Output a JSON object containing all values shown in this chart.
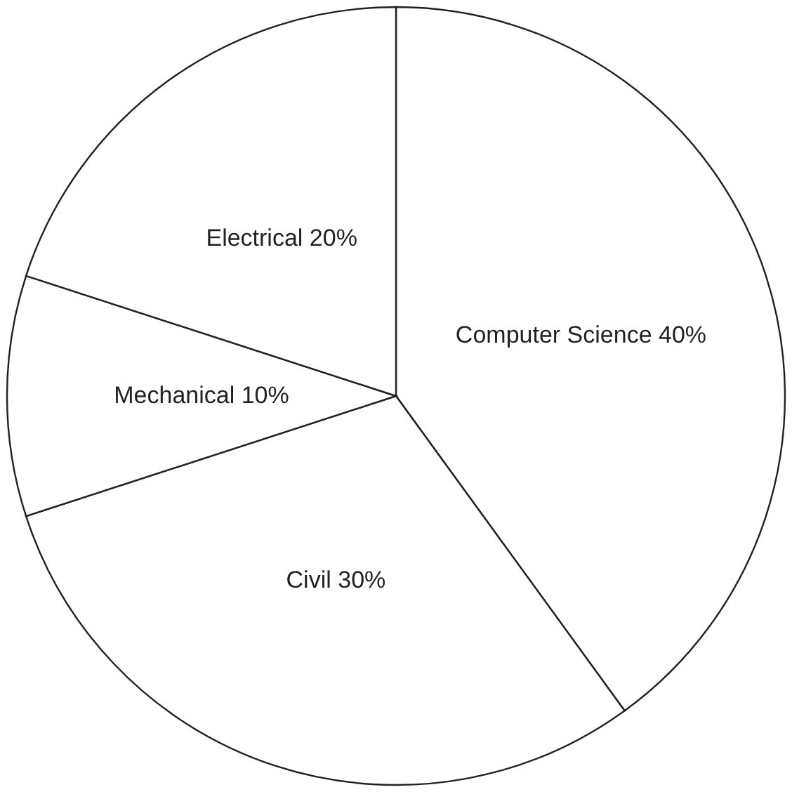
{
  "chart_data": {
    "type": "pie",
    "categories": [
      "Computer Science",
      "Civil",
      "Mechanical",
      "Electrical"
    ],
    "values": [
      40,
      30,
      10,
      20
    ],
    "value_labels": [
      "40%",
      "30%",
      "10%",
      "20%"
    ],
    "colors": [
      "#ffffff",
      "#ffffff",
      "#ffffff",
      "#ffffff"
    ],
    "data_labels": true
  }
}
